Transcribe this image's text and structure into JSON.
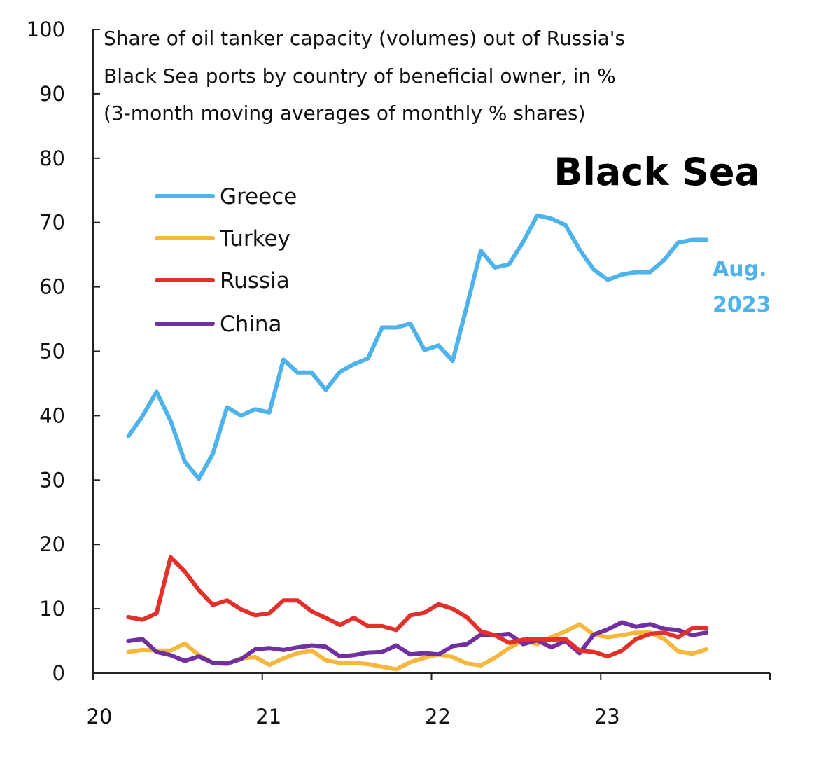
{
  "chart_data": {
    "type": "line",
    "title_lines": [
      "Share of oil tanker capacity (volumes) out of Russia's",
      "Black Sea ports by country of beneficial owner, in %",
      "(3-month moving averages of monthly % shares)"
    ],
    "panel_label": "Black Sea",
    "end_label_lines": [
      "Aug.",
      "2023"
    ],
    "xlabel": "",
    "ylabel": "",
    "x_ticks": [
      {
        "label": "20",
        "value": 2020
      },
      {
        "label": "21",
        "value": 2021
      },
      {
        "label": "22",
        "value": 2022
      },
      {
        "label": "23",
        "value": 2023
      }
    ],
    "xlim": [
      2020,
      2024
    ],
    "y_ticks": [
      0,
      10,
      20,
      30,
      40,
      50,
      60,
      70,
      80,
      90,
      100
    ],
    "ylim": [
      0,
      100
    ],
    "x": [
      "2020-03",
      "2020-04",
      "2020-05",
      "2020-06",
      "2020-07",
      "2020-08",
      "2020-09",
      "2020-10",
      "2020-11",
      "2020-12",
      "2021-01",
      "2021-02",
      "2021-03",
      "2021-04",
      "2021-05",
      "2021-06",
      "2021-07",
      "2021-08",
      "2021-09",
      "2021-10",
      "2021-11",
      "2021-12",
      "2022-01",
      "2022-02",
      "2022-03",
      "2022-04",
      "2022-05",
      "2022-06",
      "2022-07",
      "2022-08",
      "2022-09",
      "2022-10",
      "2022-11",
      "2022-12",
      "2023-01",
      "2023-02",
      "2023-03",
      "2023-04",
      "2023-05",
      "2023-06",
      "2023-07",
      "2023-08"
    ],
    "series": [
      {
        "name": "Greece",
        "color": "#4db3ea",
        "values": [
          36.8,
          39.9,
          43.7,
          39.2,
          32.9,
          30.2,
          34.1,
          41.3,
          40.0,
          41.0,
          40.5,
          48.7,
          46.7,
          46.7,
          44.0,
          46.8,
          48.0,
          48.9,
          53.7,
          53.7,
          54.3,
          50.2,
          50.9,
          48.5,
          57.0,
          65.6,
          63.0,
          63.5,
          67.0,
          71.1,
          70.6,
          69.6,
          65.8,
          62.7,
          61.1,
          61.9,
          62.3,
          62.3,
          64.2,
          66.9,
          67.3,
          67.3
        ]
      },
      {
        "name": "Turkey",
        "color": "#f5b83c",
        "values": [
          3.3,
          3.6,
          3.5,
          3.5,
          4.6,
          2.8,
          1.6,
          1.4,
          2.3,
          2.5,
          1.3,
          2.3,
          3.1,
          3.5,
          2.0,
          1.6,
          1.6,
          1.4,
          1.0,
          0.6,
          1.7,
          2.4,
          2.9,
          2.5,
          1.5,
          1.2,
          2.4,
          3.9,
          5.1,
          4.5,
          5.6,
          6.5,
          7.6,
          6.0,
          5.6,
          5.9,
          6.3,
          6.3,
          5.3,
          3.4,
          3.0,
          3.7
        ]
      },
      {
        "name": "Russia",
        "color": "#e3302a",
        "values": [
          8.7,
          8.3,
          9.3,
          18.0,
          15.8,
          12.9,
          10.6,
          11.3,
          9.9,
          9.0,
          9.3,
          11.3,
          11.3,
          9.6,
          8.6,
          7.5,
          8.6,
          7.3,
          7.3,
          6.7,
          9.0,
          9.4,
          10.7,
          10.0,
          8.7,
          6.5,
          5.9,
          4.7,
          5.2,
          5.3,
          5.2,
          5.3,
          3.5,
          3.3,
          2.6,
          3.5,
          5.3,
          6.1,
          6.3,
          5.6,
          7.0,
          7.0
        ]
      },
      {
        "name": "China",
        "color": "#7030a0",
        "values": [
          5.0,
          5.3,
          3.3,
          2.8,
          1.9,
          2.6,
          1.6,
          1.5,
          2.2,
          3.7,
          3.9,
          3.6,
          4.0,
          4.3,
          4.1,
          2.6,
          2.8,
          3.2,
          3.3,
          4.3,
          2.9,
          3.1,
          2.9,
          4.2,
          4.5,
          6.0,
          5.9,
          6.1,
          4.5,
          5.1,
          4.0,
          5.0,
          3.1,
          6.0,
          6.8,
          7.9,
          7.2,
          7.6,
          6.9,
          6.7,
          5.9,
          6.3
        ]
      }
    ]
  }
}
